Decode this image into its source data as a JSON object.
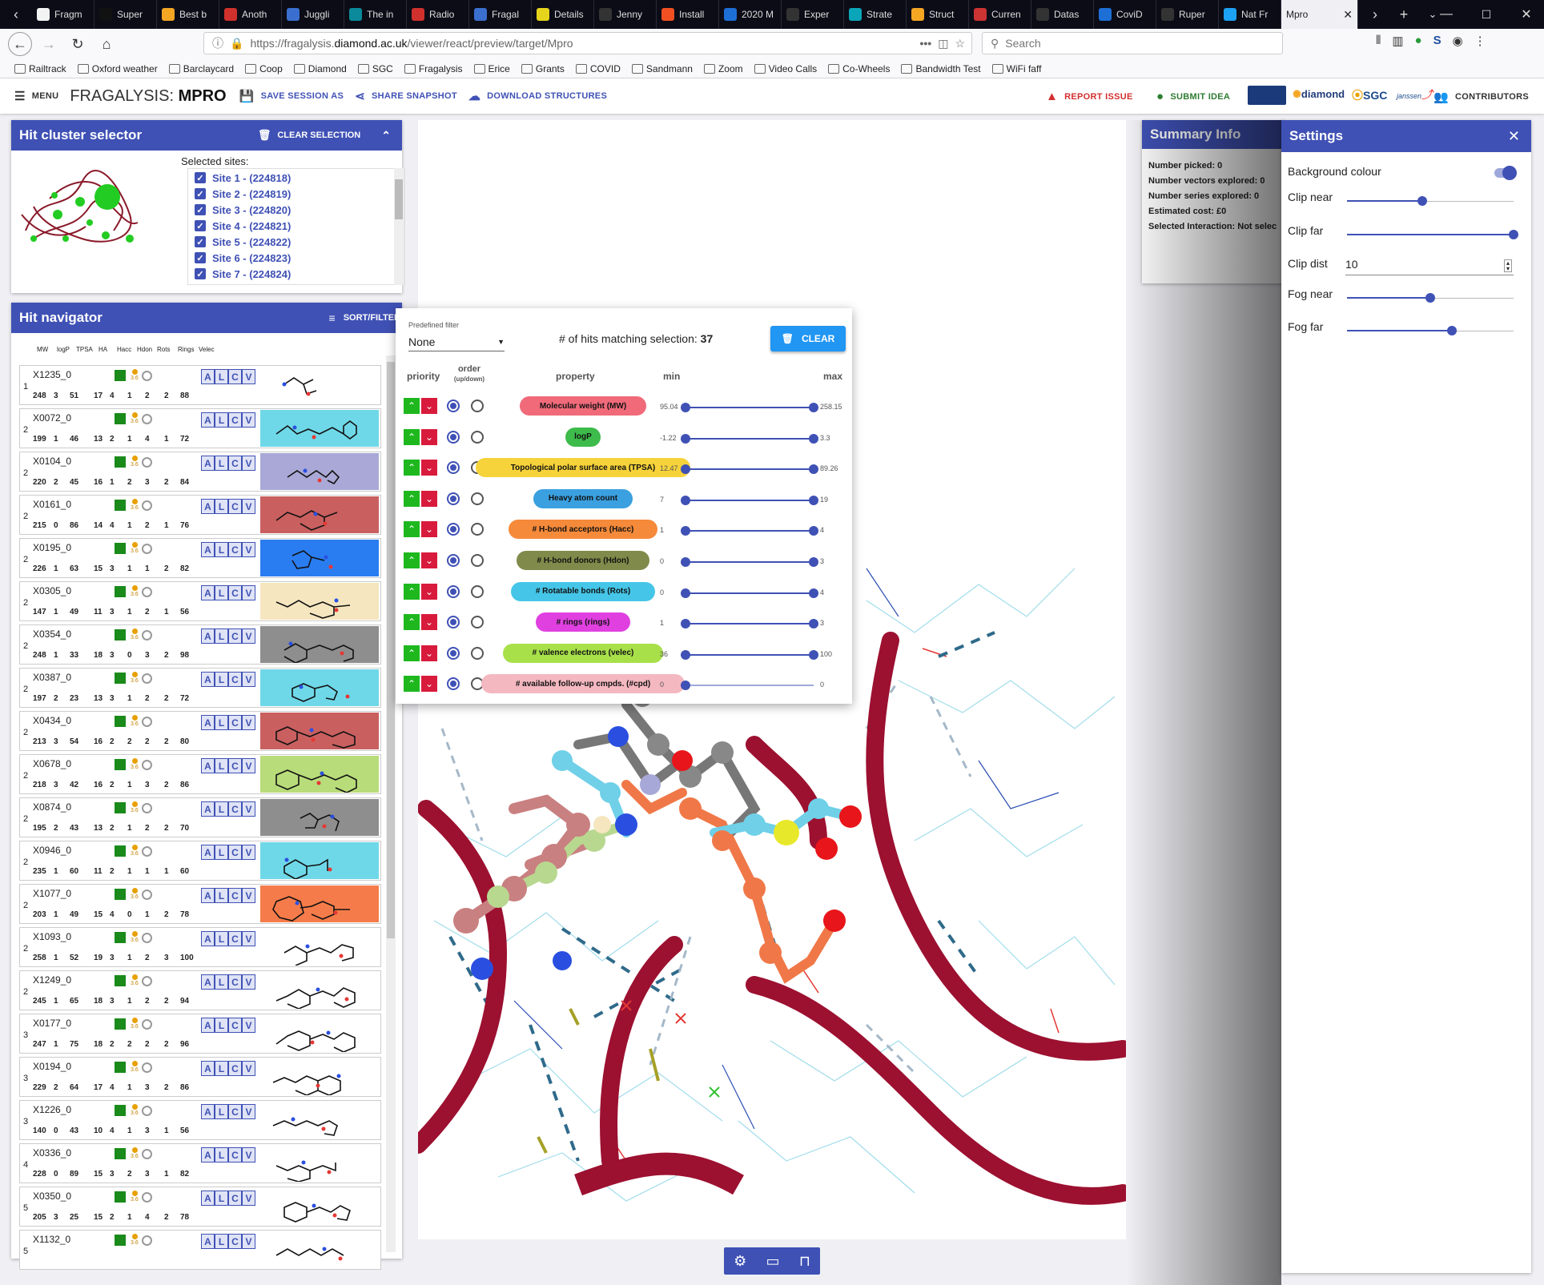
{
  "browser": {
    "tabs": [
      {
        "label": "Fragm",
        "color": "#f3f3f3"
      },
      {
        "label": "Super",
        "color": "#111"
      },
      {
        "label": "Best b",
        "color": "#f5a623"
      },
      {
        "label": "Anoth",
        "color": "#d0312d"
      },
      {
        "label": "Juggli",
        "color": "#3b6fcf"
      },
      {
        "label": "The in",
        "color": "#0a8a9a"
      },
      {
        "label": "Radio",
        "color": "#d0312d"
      },
      {
        "label": "Fragal",
        "color": "#3b6fcf"
      },
      {
        "label": "Details",
        "color": "#e6d41c"
      },
      {
        "label": "Jenny",
        "color": "#333"
      },
      {
        "label": "Install",
        "color": "#f25022"
      },
      {
        "label": "2020 M",
        "color": "#1d6fd6"
      },
      {
        "label": "Exper",
        "color": "#333"
      },
      {
        "label": "Strate",
        "color": "#0aa5b8"
      },
      {
        "label": "Struct",
        "color": "#f5a623"
      },
      {
        "label": "Curren",
        "color": "#c33"
      },
      {
        "label": "Datas",
        "color": "#333"
      },
      {
        "label": "CoviD",
        "color": "#1d6fd6"
      },
      {
        "label": "Ruper",
        "color": "#333"
      },
      {
        "label": "Nat Fr",
        "color": "#1da1f2"
      }
    ],
    "active_tab": "Mpro",
    "url_prefix": "https://fragalysis.",
    "url_domain": "diamond.ac.uk",
    "url_path": "/viewer/react/preview/target/Mpro",
    "search_placeholder": "Search",
    "bookmarks": [
      "Railtrack",
      "Oxford weather",
      "Barclaycard",
      "Coop",
      "Diamond",
      "SGC",
      "Fragalysis",
      "Erice",
      "Grants",
      "COVID",
      "Sandmann",
      "Zoom",
      "Video Calls",
      "Co-Wheels",
      "Bandwidth Test",
      "WiFi faff"
    ]
  },
  "header": {
    "menu": "MENU",
    "title_prefix": "FRAGALYSIS: ",
    "title_target": "MPRO",
    "save": "SAVE SESSION AS",
    "share": "SHARE SNAPSHOT",
    "download": "DOWNLOAD STRUCTURES",
    "report": "REPORT ISSUE",
    "idea": "SUBMIT IDEA",
    "contributors": "CONTRIBUTORS",
    "logos": [
      "diamond",
      "SGC",
      "janssen"
    ]
  },
  "cluster": {
    "title": "Hit cluster selector",
    "clear": "CLEAR SELECTION",
    "selected_label": "Selected sites:",
    "sites": [
      "Site 1 - (224818)",
      "Site 2 - (224819)",
      "Site 3 - (224820)",
      "Site 4 - (224821)",
      "Site 5 - (224822)",
      "Site 6 - (224823)",
      "Site 7 - (224824)"
    ]
  },
  "navigator": {
    "title": "Hit navigator",
    "sort": "SORT/FILTER",
    "columns": [
      "MW",
      "logP",
      "TPSA",
      "HA",
      "Hacc",
      "Hdon",
      "Rots",
      "Rings",
      "Velec"
    ],
    "alcv": [
      "A",
      "L",
      "C",
      "V"
    ],
    "dotnum": "3.6",
    "rows": [
      {
        "site": "1",
        "code": "X1235_0",
        "v": [
          "248",
          "3",
          "51",
          "17",
          "4",
          "1",
          "2",
          "2",
          "88"
        ],
        "bg": "#ffffff"
      },
      {
        "site": "2",
        "code": "X0072_0",
        "v": [
          "199",
          "1",
          "46",
          "13",
          "2",
          "1",
          "4",
          "1",
          "72"
        ],
        "bg": "#6fd8e8"
      },
      {
        "site": "2",
        "code": "X0104_0",
        "v": [
          "220",
          "2",
          "45",
          "16",
          "1",
          "2",
          "3",
          "2",
          "84"
        ],
        "bg": "#a9a8d6"
      },
      {
        "site": "2",
        "code": "X0161_0",
        "v": [
          "215",
          "0",
          "86",
          "14",
          "4",
          "1",
          "2",
          "1",
          "76"
        ],
        "bg": "#c95f5f"
      },
      {
        "site": "2",
        "code": "X0195_0",
        "v": [
          "226",
          "1",
          "63",
          "15",
          "3",
          "1",
          "1",
          "2",
          "82"
        ],
        "bg": "#2a7df0"
      },
      {
        "site": "2",
        "code": "X0305_0",
        "v": [
          "147",
          "1",
          "49",
          "11",
          "3",
          "1",
          "2",
          "1",
          "56"
        ],
        "bg": "#f5e6bf"
      },
      {
        "site": "2",
        "code": "X0354_0",
        "v": [
          "248",
          "1",
          "33",
          "18",
          "3",
          "0",
          "3",
          "2",
          "98"
        ],
        "bg": "#8e8e8e"
      },
      {
        "site": "2",
        "code": "X0387_0",
        "v": [
          "197",
          "2",
          "23",
          "13",
          "3",
          "1",
          "2",
          "2",
          "72"
        ],
        "bg": "#6fd8e8"
      },
      {
        "site": "2",
        "code": "X0434_0",
        "v": [
          "213",
          "3",
          "54",
          "16",
          "2",
          "2",
          "2",
          "2",
          "80"
        ],
        "bg": "#c95f5f"
      },
      {
        "site": "2",
        "code": "X0678_0",
        "v": [
          "218",
          "3",
          "42",
          "16",
          "2",
          "1",
          "3",
          "2",
          "86"
        ],
        "bg": "#b8dc7a"
      },
      {
        "site": "2",
        "code": "X0874_0",
        "v": [
          "195",
          "2",
          "43",
          "13",
          "2",
          "1",
          "2",
          "2",
          "70"
        ],
        "bg": "#8e8e8e"
      },
      {
        "site": "2",
        "code": "X0946_0",
        "v": [
          "235",
          "1",
          "60",
          "11",
          "2",
          "1",
          "1",
          "1",
          "60"
        ],
        "bg": "#6fd8e8"
      },
      {
        "site": "2",
        "code": "X1077_0",
        "v": [
          "203",
          "1",
          "49",
          "15",
          "4",
          "0",
          "1",
          "2",
          "78"
        ],
        "bg": "#f57c4a"
      },
      {
        "site": "2",
        "code": "X1093_0",
        "v": [
          "258",
          "1",
          "52",
          "19",
          "3",
          "1",
          "2",
          "3",
          "100"
        ],
        "bg": "#ffffff"
      },
      {
        "site": "2",
        "code": "X1249_0",
        "v": [
          "245",
          "1",
          "65",
          "18",
          "3",
          "1",
          "2",
          "2",
          "94"
        ],
        "bg": "#ffffff"
      },
      {
        "site": "3",
        "code": "X0177_0",
        "v": [
          "247",
          "1",
          "75",
          "18",
          "2",
          "2",
          "2",
          "2",
          "96"
        ],
        "bg": "#ffffff"
      },
      {
        "site": "3",
        "code": "X0194_0",
        "v": [
          "229",
          "2",
          "64",
          "17",
          "4",
          "1",
          "3",
          "2",
          "86"
        ],
        "bg": "#ffffff"
      },
      {
        "site": "3",
        "code": "X1226_0",
        "v": [
          "140",
          "0",
          "43",
          "10",
          "4",
          "1",
          "3",
          "1",
          "56"
        ],
        "bg": "#ffffff"
      },
      {
        "site": "4",
        "code": "X0336_0",
        "v": [
          "228",
          "0",
          "89",
          "15",
          "3",
          "2",
          "3",
          "1",
          "82"
        ],
        "bg": "#ffffff"
      },
      {
        "site": "5",
        "code": "X0350_0",
        "v": [
          "205",
          "3",
          "25",
          "15",
          "2",
          "1",
          "4",
          "2",
          "78"
        ],
        "bg": "#ffffff"
      },
      {
        "site": "5",
        "code": "X1132_0",
        "v": [
          "",
          "",
          "",
          "",
          "",
          "",
          "",
          "",
          ""
        ],
        "bg": "#ffffff"
      }
    ]
  },
  "filter": {
    "predefined_label": "Predefined filter",
    "predefined_value": "None",
    "matching_prefix": "# of hits matching selection: ",
    "matching_count": "37",
    "clear": "CLEAR",
    "col_priority": "priority",
    "col_order": "order",
    "col_order_sub": "(up/down)",
    "col_property": "property",
    "col_min": "min",
    "col_max": "max",
    "props": [
      {
        "label": "Molecular weight (MW)",
        "color": "#f06a7a",
        "min": "95.04",
        "max": "258.15",
        "lo": 0,
        "hi": 1
      },
      {
        "label": "logP",
        "color": "#3dbb4b",
        "min": "-1.22",
        "max": "3.3",
        "lo": 0,
        "hi": 1
      },
      {
        "label": "Topological polar surface area (TPSA)",
        "color": "#f6d33a",
        "min": "12.47",
        "max": "89.26",
        "lo": 0,
        "hi": 1
      },
      {
        "label": "Heavy atom count",
        "color": "#3aa0e0",
        "min": "7",
        "max": "19",
        "lo": 0,
        "hi": 1
      },
      {
        "label": "# H-bond acceptors (Hacc)",
        "color": "#f58a3a",
        "min": "1",
        "max": "4",
        "lo": 0,
        "hi": 1
      },
      {
        "label": "# H-bond donors (Hdon)",
        "color": "#808a4a",
        "min": "0",
        "max": "3",
        "lo": 0,
        "hi": 1
      },
      {
        "label": "# Rotatable bonds (Rots)",
        "color": "#45c6e8",
        "min": "0",
        "max": "4",
        "lo": 0,
        "hi": 1
      },
      {
        "label": "# rings (rings)",
        "color": "#e040e0",
        "min": "1",
        "max": "3",
        "lo": 0,
        "hi": 1
      },
      {
        "label": "# valence electrons (velec)",
        "color": "#a8e04a",
        "min": "36",
        "max": "100",
        "lo": 0,
        "hi": 1
      },
      {
        "label": "# available follow-up cmpds. (#cpd)",
        "color": "#f4b8c0",
        "min": "0",
        "max": "0",
        "lo": 0,
        "hi": 0
      }
    ]
  },
  "summary": {
    "title": "Summary Info",
    "lines": [
      "Number picked: 0",
      "Number vectors explored: 0",
      "Number series explored: 0",
      "Estimated cost: £0",
      "Selected Interaction: Not selec"
    ]
  },
  "settings": {
    "title": "Settings",
    "bg_colour": "Background colour",
    "clip_near": "Clip near",
    "clip_near_val": 0.45,
    "clip_far": "Clip far",
    "clip_far_val": 1.0,
    "clip_dist": "Clip dist",
    "clip_dist_val": "10",
    "fog_near": "Fog near",
    "fog_near_val": 0.5,
    "fog_far": "Fog far",
    "fog_far_val": 0.63
  }
}
